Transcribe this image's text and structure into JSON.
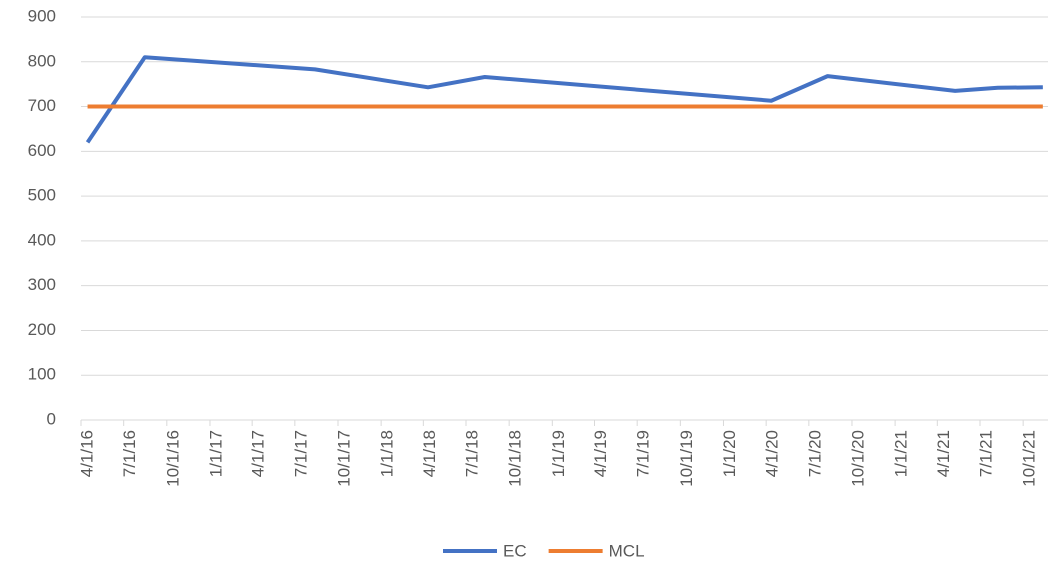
{
  "chart_data": {
    "type": "line",
    "series": [
      {
        "name": "EC",
        "color": "#4472c4",
        "x": [
          "4/15/16",
          "8/15/16",
          "8/13/17",
          "4/11/18",
          "8/10/18",
          "4/12/20",
          "8/10/20",
          "5/9/21",
          "8/8/21",
          "11/12/21"
        ],
        "values": [
          620,
          810,
          783,
          743,
          766,
          713,
          768,
          735,
          742,
          743
        ]
      },
      {
        "name": "MCL",
        "color": "#ed7d31",
        "x": [
          "4/15/16",
          "11/12/21"
        ],
        "values": [
          700,
          700
        ]
      }
    ],
    "xlim": [
      "4/1/16",
      "11/23/21"
    ],
    "xticks": [
      "4/1/16",
      "7/1/16",
      "10/1/16",
      "1/1/17",
      "4/1/17",
      "7/1/17",
      "10/1/17",
      "1/1/18",
      "4/1/18",
      "7/1/18",
      "10/1/18",
      "1/1/19",
      "4/1/19",
      "7/1/19",
      "10/1/19",
      "1/1/20",
      "4/1/20",
      "7/1/20",
      "10/1/20",
      "1/1/21",
      "4/1/21",
      "7/1/21",
      "10/1/21"
    ],
    "ylim": [
      0,
      900
    ],
    "yticks": [
      0,
      100,
      200,
      300,
      400,
      500,
      600,
      700,
      800,
      900
    ],
    "grid": true,
    "legend": "bottom"
  }
}
